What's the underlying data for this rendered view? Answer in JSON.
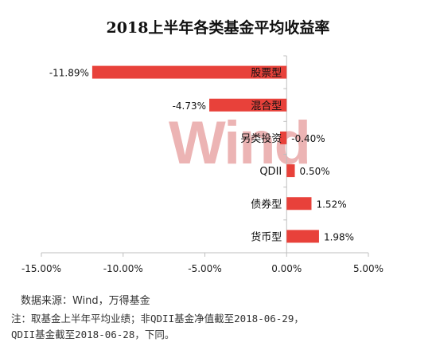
{
  "chart_data": {
    "type": "bar",
    "orientation": "horizontal",
    "title": "2018上半年各类基金平均收益率",
    "categories": [
      "股票型",
      "混合型",
      "另类投资",
      "QDII",
      "债券型",
      "货币型"
    ],
    "values": [
      -11.89,
      -4.73,
      -0.4,
      0.5,
      1.52,
      1.98
    ],
    "value_labels": [
      "-11.89%",
      "-4.73%",
      "-0.40%",
      "0.50%",
      "1.52%",
      "1.98%"
    ],
    "xlim": [
      -15,
      5
    ],
    "xticks": [
      -15,
      -10,
      -5,
      0,
      5
    ],
    "xtick_labels": [
      "-15.00%",
      "-10.00%",
      "-5.00%",
      "0.00%",
      "5.00%"
    ],
    "bar_color": "#e8413a",
    "grid": false
  },
  "watermark": "Wind",
  "source": "数据来源：Wind，万得基金",
  "note_lines": [
    "注：取基金上半年平均业绩；非QDII基金净值截至2018-06-29，",
    "QDII基金截至2018-06-28，下同。"
  ]
}
